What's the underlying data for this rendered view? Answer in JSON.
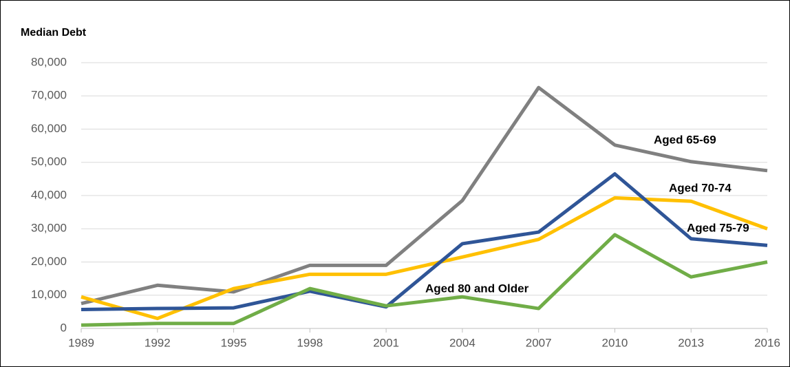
{
  "chart_data": {
    "type": "line",
    "title": "Median Debt",
    "x": [
      1989,
      1992,
      1995,
      1998,
      2001,
      2004,
      2007,
      2010,
      2013,
      2016
    ],
    "xlim": [
      1989,
      2016
    ],
    "xticks": [
      1989,
      1992,
      1995,
      1998,
      2001,
      2004,
      2007,
      2010,
      2013,
      2016
    ],
    "ylim": [
      0,
      80000
    ],
    "yticks": [
      0,
      {
        "value": 10000,
        "label": "10,000"
      },
      {
        "value": 20000,
        "label": "20,000"
      },
      {
        "value": 30000,
        "label": "30,000"
      },
      {
        "value": 40000,
        "label": "40,000"
      },
      {
        "value": 50000,
        "label": "50,000"
      },
      {
        "value": 60000,
        "label": "60,000"
      },
      {
        "value": 70000,
        "label": "70,000"
      },
      {
        "value": 80000,
        "label": "80,000"
      }
    ],
    "grid": true,
    "series": [
      {
        "name": "Aged 65-69",
        "color": "#808080",
        "values": [
          7500,
          13000,
          11000,
          19000,
          19000,
          38500,
          72500,
          55200,
          50200,
          47500
        ]
      },
      {
        "name": "Aged 70-74",
        "color": "#FFC000",
        "values": [
          9500,
          3000,
          12000,
          16300,
          16300,
          21500,
          26800,
          39300,
          38300,
          30000
        ]
      },
      {
        "name": "Aged 75-79",
        "color": "#2F5597",
        "values": [
          5700,
          6000,
          6200,
          11200,
          6500,
          25500,
          29000,
          46500,
          27000,
          25000
        ]
      },
      {
        "name": "Aged 80 and Older",
        "color": "#70AD47",
        "values": [
          1000,
          1500,
          1500,
          12000,
          6800,
          9500,
          6000,
          28200,
          15500,
          20000
        ]
      }
    ]
  }
}
